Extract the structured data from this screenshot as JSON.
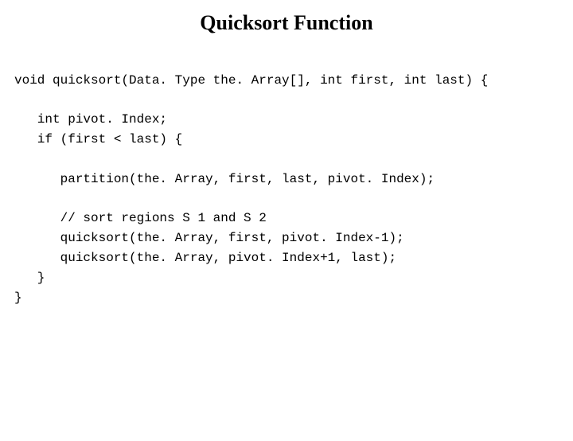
{
  "title": "Quicksort Function",
  "code": {
    "line1": "void quicksort(Data. Type the. Array[], int first, int last) {",
    "line2": "",
    "line3": "   int pivot. Index;",
    "line4": "   if (first < last) {",
    "line5": "",
    "line6": "      partition(the. Array, first, last, pivot. Index);",
    "line7": "",
    "line8": "      // sort regions S 1 and S 2",
    "line9": "      quicksort(the. Array, first, pivot. Index-1);",
    "line10": "      quicksort(the. Array, pivot. Index+1, last);",
    "line11": "   }",
    "line12": "}"
  },
  "style": {
    "background": "#ffffff",
    "text_color": "#000000",
    "title_fontsize": 26,
    "code_fontsize": 16,
    "code_font": "Courier New",
    "title_font": "Times New Roman"
  }
}
